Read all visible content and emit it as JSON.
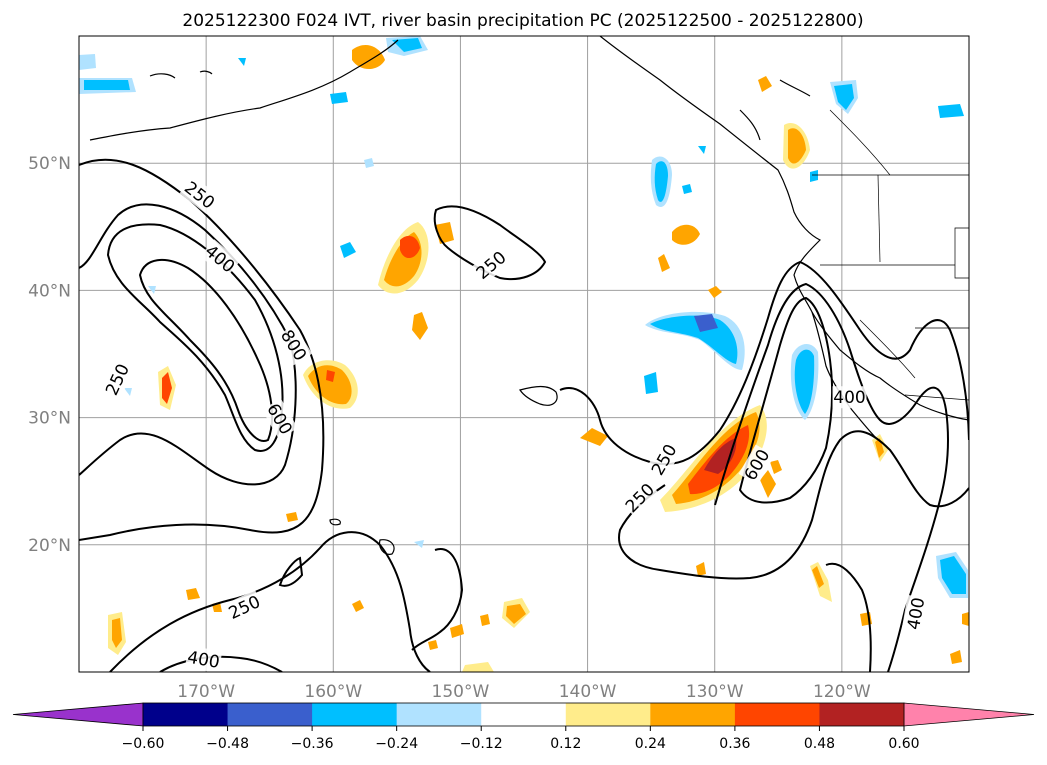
{
  "chart_data": {
    "type": "map",
    "title": "2025122300 F024 IVT, river basin precipitation PC (2025122500 - 2025122800)",
    "map_extent": {
      "lon_min": -180,
      "lon_max": -110,
      "lat_min": 10,
      "lat_max": 60
    },
    "lon_ticks": [
      {
        "value": -170,
        "label": "170°W"
      },
      {
        "value": -160,
        "label": "160°W"
      },
      {
        "value": -150,
        "label": "150°W"
      },
      {
        "value": -140,
        "label": "140°W"
      },
      {
        "value": -130,
        "label": "130°W"
      },
      {
        "value": -120,
        "label": "120°W"
      }
    ],
    "lat_ticks": [
      {
        "value": 20,
        "label": "20°N"
      },
      {
        "value": 30,
        "label": "30°N"
      },
      {
        "value": 40,
        "label": "40°N"
      },
      {
        "value": 50,
        "label": "50°N"
      }
    ],
    "grid": true,
    "ivt_contour_levels": [
      250,
      400,
      600,
      800
    ],
    "contour_labels": [
      {
        "text": "250",
        "lon": -170.5,
        "lat": 47.5,
        "rot": 38
      },
      {
        "text": "400",
        "lon": -168.9,
        "lat": 42.5,
        "rot": 40
      },
      {
        "text": "800",
        "lon": -163.1,
        "lat": 35.7,
        "rot": 58
      },
      {
        "text": "600",
        "lon": -164.2,
        "lat": 29.9,
        "rot": 60
      },
      {
        "text": "250",
        "lon": -177.0,
        "lat": 33.0,
        "rot": -65
      },
      {
        "text": "250",
        "lon": -147.6,
        "lat": 42.0,
        "rot": -40
      },
      {
        "text": "250",
        "lon": -134.0,
        "lat": 26.7,
        "rot": -60
      },
      {
        "text": "250",
        "lon": -135.9,
        "lat": 23.7,
        "rot": -45
      },
      {
        "text": "600",
        "lon": -126.7,
        "lat": 26.3,
        "rot": -60
      },
      {
        "text": "400",
        "lon": -119.4,
        "lat": 31.6,
        "rot": 0
      },
      {
        "text": "250",
        "lon": -167.0,
        "lat": 15.1,
        "rot": -25
      },
      {
        "text": "400",
        "lon": -170.2,
        "lat": 11.0,
        "rot": 10
      },
      {
        "text": "400",
        "lon": -114.2,
        "lat": 14.6,
        "rot": -80
      }
    ],
    "colorbar": {
      "levels": [
        -0.6,
        -0.48,
        -0.36,
        -0.24,
        -0.12,
        0.12,
        0.24,
        0.36,
        0.48,
        0.6
      ],
      "tick_labels": [
        "−0.60",
        "−0.48",
        "−0.36",
        "−0.24",
        "−0.12",
        "0.12",
        "0.24",
        "0.36",
        "0.48",
        "0.60"
      ],
      "colors": [
        "#9932cc",
        "#00008b",
        "#3a5fcd",
        "#00bfff",
        "#b0e2ff",
        "#ffffff",
        "#ffec8b",
        "#ffa500",
        "#ff4500",
        "#b22222",
        "#ff82ab"
      ],
      "extend": "both"
    }
  }
}
